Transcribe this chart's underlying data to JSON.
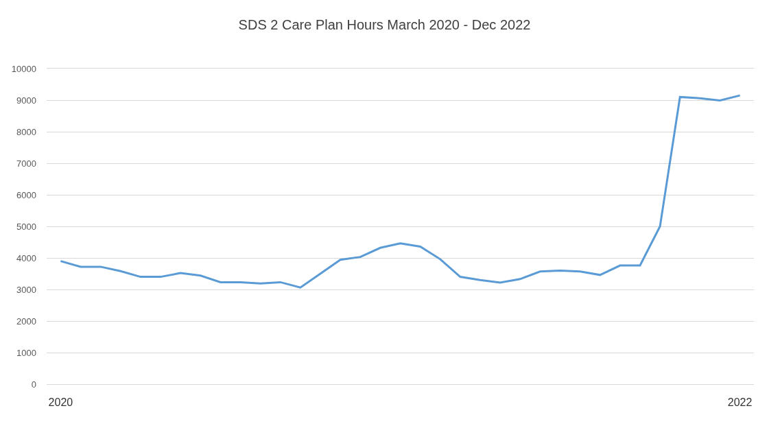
{
  "chart_data": {
    "type": "line",
    "title": "SDS 2 Care Plan Hours March 2020 - Dec 2022",
    "categories": [
      "2020",
      null,
      null,
      null,
      null,
      null,
      null,
      null,
      null,
      null,
      null,
      null,
      null,
      null,
      null,
      null,
      null,
      null,
      null,
      null,
      null,
      null,
      null,
      null,
      null,
      null,
      null,
      null,
      null,
      null,
      null,
      null,
      null,
      null,
      "2022"
    ],
    "series": [
      {
        "color": "#5b9bd5",
        "values": [
          3900,
          3720,
          3720,
          3580,
          3400,
          3400,
          3520,
          3440,
          3230,
          3230,
          3190,
          3230,
          3060,
          3500,
          3940,
          4030,
          4320,
          4460,
          4360,
          3960,
          3400,
          3300,
          3220,
          3330,
          3570,
          3600,
          3570,
          3460,
          3760,
          3760,
          5000,
          9100,
          9060,
          8990,
          9150
        ]
      }
    ],
    "ylim": [
      0,
      10000
    ],
    "yticks": [
      0,
      1000,
      2000,
      3000,
      4000,
      5000,
      6000,
      7000,
      8000,
      9000,
      10000
    ],
    "grid": "y",
    "marker": "none",
    "line_style": "solid"
  }
}
